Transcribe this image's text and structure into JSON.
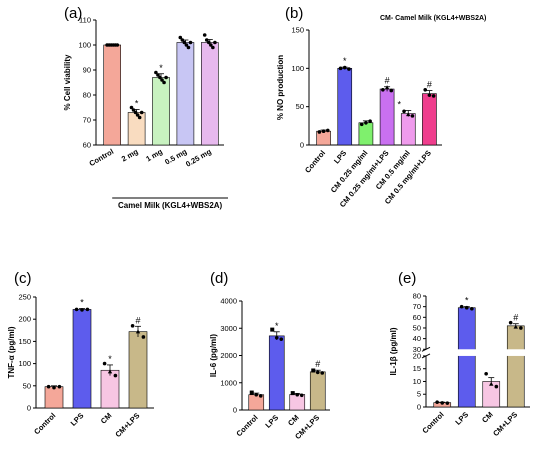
{
  "header_note": "CM- Camel Milk (KGL4+WBS2A)",
  "chart_data": [
    {
      "id": "a",
      "panel_label": "(a)",
      "type": "bar",
      "ylabel": "% Cell viability",
      "ylim": [
        60,
        110
      ],
      "yticks": [
        60,
        70,
        80,
        90,
        100,
        110
      ],
      "categories": [
        "Control",
        "2 mg",
        "1 mg",
        "0.5 mg",
        "0.25 mg"
      ],
      "values": [
        100,
        73,
        87,
        101,
        101
      ],
      "errors": [
        0.3,
        1.2,
        1.5,
        1.0,
        1.2
      ],
      "colors": [
        "#f4a799",
        "#f9dcc0",
        "#c8f2c0",
        "#c8c6f4",
        "#e7b9ee"
      ],
      "sig": [
        "",
        "*",
        "*",
        "",
        ""
      ],
      "points": [
        [
          100,
          100,
          100,
          100,
          100,
          100
        ],
        [
          75,
          74,
          73,
          72,
          71,
          73
        ],
        [
          89,
          88,
          87,
          86,
          85,
          87
        ],
        [
          103,
          102,
          101,
          100,
          99,
          101
        ],
        [
          104,
          102,
          101,
          100,
          99,
          101
        ]
      ],
      "xlabel": "Camel Milk (KGL4+WBS2A)"
    },
    {
      "id": "b",
      "panel_label": "(b)",
      "type": "bar",
      "ylabel": "% NO production",
      "ylim": [
        0,
        150
      ],
      "yticks": [
        0,
        50,
        100,
        150
      ],
      "categories": [
        "Control",
        "LPS",
        "CM 0.25 mg/ml",
        "CM 0.25 mg/ml+LPS",
        "CM 0.5 mg/ml",
        "CM 0.5 mg/ml+LPS"
      ],
      "values": [
        18,
        100,
        29,
        73,
        41,
        67
      ],
      "errors": [
        1.5,
        1.5,
        2.5,
        3,
        4,
        4
      ],
      "colors": [
        "#f4a799",
        "#5d5ced",
        "#7ff06d",
        "#c970f0",
        "#ef9bec",
        "#ef3e8d"
      ],
      "sig": [
        "",
        "*",
        "",
        "#",
        "*",
        "#"
      ],
      "points": [
        [
          17,
          18,
          19
        ],
        [
          100,
          101,
          99
        ],
        [
          27,
          29,
          31
        ],
        [
          72,
          75,
          71
        ],
        [
          44,
          40,
          38
        ],
        [
          72,
          65,
          64
        ]
      ]
    },
    {
      "id": "c",
      "panel_label": "(c)",
      "type": "bar",
      "ylabel": "TNF-α (pg/ml)",
      "ylim": [
        0,
        250
      ],
      "yticks": [
        0,
        50,
        100,
        150,
        200,
        250
      ],
      "categories": [
        "Control",
        "LPS",
        "CM",
        "CM+LPS"
      ],
      "values": [
        48,
        222,
        85,
        172
      ],
      "errors": [
        2,
        2,
        12,
        12
      ],
      "colors": [
        "#f4a799",
        "#5d5ced",
        "#f7c6e3",
        "#c8b889"
      ],
      "sig": [
        "",
        "*",
        "*",
        "#"
      ],
      "points": [
        [
          48,
          46,
          48
        ],
        [
          222,
          221,
          222
        ],
        [
          100,
          82,
          73
        ],
        [
          185,
          172,
          160
        ]
      ]
    },
    {
      "id": "d",
      "panel_label": "(d)",
      "type": "bar",
      "ylabel": "IL-6 (pg/ml)",
      "ylim": [
        0,
        4000
      ],
      "yticks": [
        0,
        1000,
        2000,
        3000,
        4000
      ],
      "categories": [
        "Control",
        "LPS",
        "CM",
        "CM+LPS"
      ],
      "values": [
        560,
        2720,
        570,
        1400
      ],
      "errors": [
        60,
        150,
        40,
        60
      ],
      "colors": [
        "#f4a799",
        "#5d5ced",
        "#f7c6e3",
        "#c8b889"
      ],
      "sig": [
        "",
        "*",
        "",
        "#"
      ],
      "points": [
        [
          640,
          560,
          520
        ],
        [
          2950,
          2650,
          2600
        ],
        [
          620,
          560,
          540
        ],
        [
          1450,
          1380,
          1360
        ]
      ]
    },
    {
      "id": "e",
      "panel_label": "(e)",
      "type": "bar",
      "ylabel": "IL-1β (pg/ml)",
      "axis_break": {
        "lower": [
          0,
          20
        ],
        "upper": [
          30,
          80
        ]
      },
      "yticks_lower": [
        0,
        5,
        10,
        15,
        20
      ],
      "yticks_upper": [
        30,
        40,
        50,
        60,
        70,
        80
      ],
      "categories": [
        "Control",
        "LPS",
        "CM",
        "CM+LPS"
      ],
      "values": [
        1.7,
        69,
        10,
        52
      ],
      "errors": [
        0.2,
        1,
        1.5,
        2
      ],
      "colors": [
        "#f4a799",
        "#5d5ced",
        "#f7c6e3",
        "#c8b889"
      ],
      "sig": [
        "",
        "*",
        "",
        "#"
      ],
      "points": [
        [
          1.9,
          1.6,
          1.5
        ],
        [
          70,
          69,
          68
        ],
        [
          13,
          9,
          8
        ],
        [
          55,
          51,
          50
        ]
      ]
    }
  ]
}
